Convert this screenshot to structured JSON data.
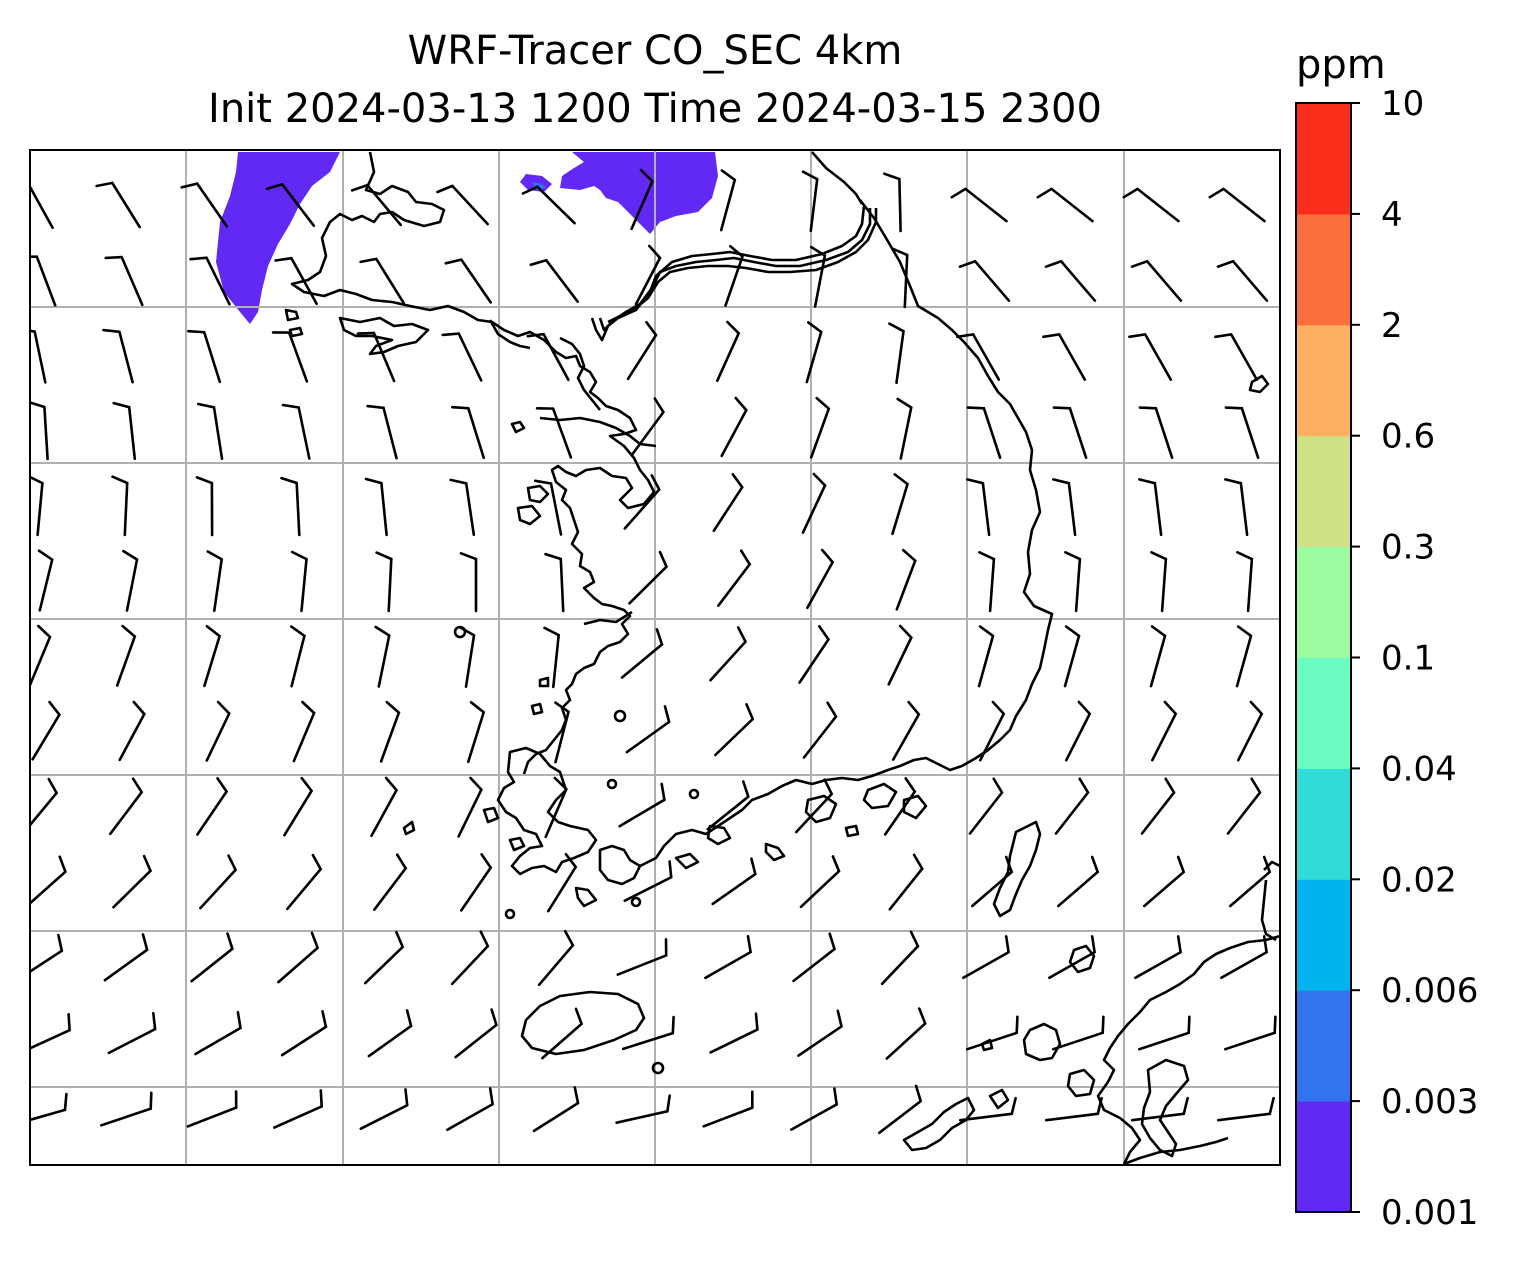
{
  "title": {
    "line1": "WRF-Tracer CO_SEC 4km",
    "line2": "Init 2024-03-13 1200 Time 2024-03-15 2300"
  },
  "colorbar": {
    "unit": "ppm",
    "levels": [
      "0.001",
      "0.003",
      "0.006",
      "0.02",
      "0.04",
      "0.1",
      "0.3",
      "0.6",
      "2",
      "4",
      "10"
    ],
    "colors": [
      "#6229f5",
      "#3373ee",
      "#02b4ee",
      "#2fdcd8",
      "#6bfdc2",
      "#9cfda0",
      "#cfe186",
      "#fdb062",
      "#fc6f3c",
      "#fb2d1b"
    ]
  },
  "map": {
    "shaded_color": "#6229f5",
    "grid_color": "#b0b0b0",
    "coastline_color": "#000000",
    "wind_barb_color": "#000000"
  }
}
